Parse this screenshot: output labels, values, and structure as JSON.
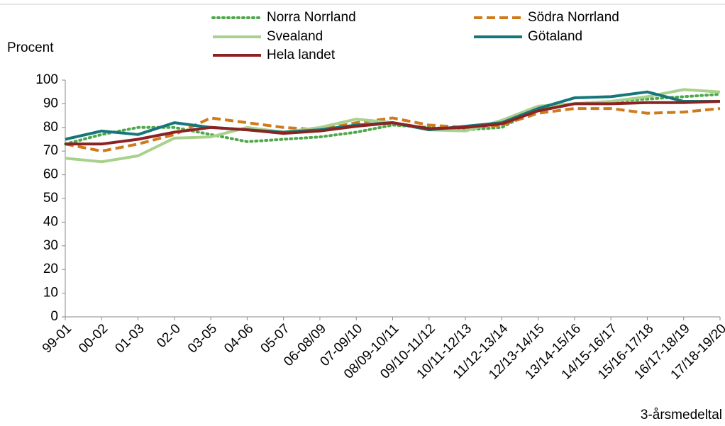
{
  "chart_data": {
    "type": "line",
    "y_label": "Procent",
    "x_label": "3-årsmedeltal",
    "categories": [
      "99-01",
      "00-02",
      "01-03",
      "02-0",
      "03-05",
      "04-06",
      "05-07",
      "06-08/09",
      "07-09/10",
      "08/09-10/11",
      "09/10-11/12",
      "10/11-12/13",
      "11/12-13/14",
      "12/13-14/15",
      "13/14-15/16",
      "14/15-16/17",
      "15/16-17/18",
      "16/17-18/19",
      "17/18-19/20"
    ],
    "ylim": [
      0,
      100
    ],
    "yticks": [
      0,
      10,
      20,
      30,
      40,
      50,
      60,
      70,
      80,
      90,
      100
    ],
    "series": [
      {
        "name": "Norra Norrland",
        "color": "#4fa84a",
        "style": "dotted",
        "values": [
          73,
          77,
          80,
          80,
          77,
          74,
          75,
          76,
          78,
          81,
          80,
          79,
          80,
          88,
          90,
          91,
          92,
          93,
          94
        ]
      },
      {
        "name": "Södra Norrland",
        "color": "#d07a1e",
        "style": "dashed",
        "values": [
          73,
          70,
          73,
          77,
          84,
          82,
          80,
          79,
          82,
          84,
          81,
          80,
          81,
          86,
          88,
          88,
          86,
          86.5,
          88
        ]
      },
      {
        "name": "Svealand",
        "color": "#a9d18e",
        "style": "solid",
        "values": [
          67,
          65.5,
          68,
          75.5,
          76,
          80,
          78,
          80,
          83.5,
          82,
          79,
          78.5,
          83,
          89,
          90,
          91,
          93,
          96,
          95
        ]
      },
      {
        "name": "Götaland",
        "color": "#17767a",
        "style": "solid",
        "values": [
          75,
          78.5,
          77,
          82,
          80,
          79,
          78,
          79,
          81,
          82,
          79,
          80.5,
          82,
          88,
          92.5,
          93,
          95,
          91,
          91
        ]
      },
      {
        "name": "Hela landet",
        "color": "#8b2323",
        "style": "solid",
        "values": [
          73,
          73,
          75,
          78,
          80,
          79,
          77.5,
          78.5,
          80.5,
          82,
          79.5,
          80,
          81.5,
          87,
          90,
          90,
          90.5,
          90.5,
          91
        ]
      }
    ]
  }
}
